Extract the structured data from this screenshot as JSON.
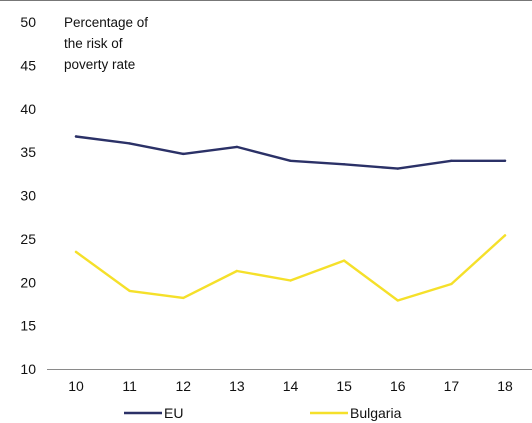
{
  "chart_data": {
    "type": "line",
    "title": "",
    "xlabel": "",
    "ylabel": "",
    "y_annotation_lines": [
      "Percentage of",
      "the risk of",
      "poverty rate"
    ],
    "x": [
      "10",
      "11",
      "12",
      "13",
      "14",
      "15",
      "16",
      "17",
      "18"
    ],
    "ylim": [
      10,
      50
    ],
    "yticks": [
      "10",
      "15",
      "20",
      "25",
      "30",
      "35",
      "40",
      "45",
      "50"
    ],
    "grid": false,
    "legend_position": "bottom",
    "series": [
      {
        "name": "EU",
        "color": "#2b3167",
        "values": [
          36.8,
          36.0,
          34.8,
          35.6,
          34.0,
          33.6,
          33.1,
          34.0,
          34.0
        ]
      },
      {
        "name": "Bulgaria",
        "color": "#f5e02a",
        "values": [
          23.5,
          19.0,
          18.2,
          21.3,
          20.2,
          22.5,
          17.9,
          19.8,
          25.4
        ]
      }
    ]
  }
}
